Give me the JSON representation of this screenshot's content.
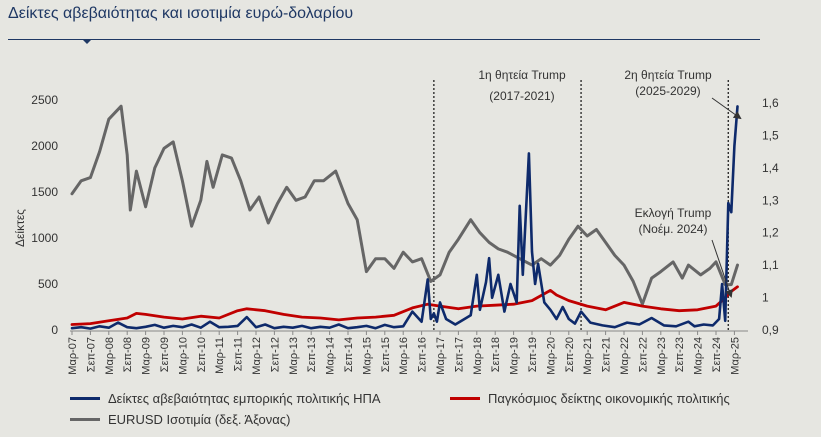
{
  "header": {
    "title": "Δείκτες αβεβαιότητας και ισοτιμία ευρώ-δολαρίου"
  },
  "chart_data": {
    "type": "line",
    "ylabel": "Δείκτες",
    "ylim": [
      0,
      2600
    ],
    "y_ticks": [
      "0",
      "500",
      "1000",
      "1500",
      "2000",
      "2500"
    ],
    "y2lim": [
      0.9,
      1.62
    ],
    "y2_ticks": [
      "0,9",
      "1",
      "1,1",
      "1,2",
      "1,3",
      "1,4",
      "1,5",
      "1,6"
    ],
    "x_ticks": [
      "Μαρ-07",
      "Σεπ-07",
      "Μαρ-08",
      "Σεπ-08",
      "Μαρ-09",
      "Σεπ-09",
      "Μαρ-10",
      "Σεπ-10",
      "Μαρ-11",
      "Σεπ-11",
      "Μαρ-12",
      "Σεπ-12",
      "Μαρ-13",
      "Σεπ-13",
      "Μαρ-14",
      "Σεπ-14",
      "Μαρ-15",
      "Σεπ-15",
      "Μαρ-16",
      "Σεπ-16",
      "Μαρ-17",
      "Σεπ-17",
      "Μαρ-18",
      "Σεπ-18",
      "Μαρ-19",
      "Σεπ-19",
      "Μαρ-20",
      "Σεπ-20",
      "Μαρ-21",
      "Σεπ-21",
      "Μαρ-22",
      "Σεπ-22",
      "Μαρ-23",
      "Σεπ-23",
      "Μαρ-24",
      "Σεπ-24",
      "Μαρ-25"
    ],
    "annotations": {
      "term1_line1": "1η θητεία Trump",
      "term1_line2": "(2017-2021)",
      "term2_line1": "2η θητεία Trump",
      "term2_line2": "(2025-2029)",
      "election_line1": "Εκλογή Trump",
      "election_line2": "(Νοέμ. 2024)"
    },
    "vlines_x": [
      "2017-01",
      "2021-01",
      "2025-01"
    ],
    "series": [
      {
        "name": "Δείκτες αβεβαιότητας εμπορικής πολιτικής ΗΠΑ",
        "axis": "left",
        "color": "#0e2a6b",
        "points": [
          [
            "2007-03",
            20
          ],
          [
            "2007-06",
            30
          ],
          [
            "2007-09",
            15
          ],
          [
            "2007-12",
            40
          ],
          [
            "2008-03",
            25
          ],
          [
            "2008-06",
            80
          ],
          [
            "2008-09",
            30
          ],
          [
            "2008-12",
            20
          ],
          [
            "2009-03",
            35
          ],
          [
            "2009-06",
            55
          ],
          [
            "2009-09",
            25
          ],
          [
            "2009-12",
            45
          ],
          [
            "2010-03",
            30
          ],
          [
            "2010-06",
            60
          ],
          [
            "2010-09",
            25
          ],
          [
            "2010-12",
            90
          ],
          [
            "2011-03",
            30
          ],
          [
            "2011-06",
            35
          ],
          [
            "2011-09",
            45
          ],
          [
            "2011-12",
            140
          ],
          [
            "2012-03",
            30
          ],
          [
            "2012-06",
            60
          ],
          [
            "2012-09",
            20
          ],
          [
            "2012-12",
            35
          ],
          [
            "2013-03",
            25
          ],
          [
            "2013-06",
            45
          ],
          [
            "2013-09",
            20
          ],
          [
            "2013-12",
            35
          ],
          [
            "2014-03",
            25
          ],
          [
            "2014-06",
            60
          ],
          [
            "2014-09",
            20
          ],
          [
            "2014-12",
            30
          ],
          [
            "2015-03",
            45
          ],
          [
            "2015-06",
            20
          ],
          [
            "2015-09",
            55
          ],
          [
            "2015-12",
            30
          ],
          [
            "2016-03",
            40
          ],
          [
            "2016-06",
            200
          ],
          [
            "2016-09",
            90
          ],
          [
            "2016-11",
            550
          ],
          [
            "2016-12",
            120
          ],
          [
            "2017-01",
            180
          ],
          [
            "2017-02",
            90
          ],
          [
            "2017-03",
            300
          ],
          [
            "2017-05",
            120
          ],
          [
            "2017-08",
            60
          ],
          [
            "2017-11",
            120
          ],
          [
            "2018-01",
            160
          ],
          [
            "2018-03",
            600
          ],
          [
            "2018-04",
            220
          ],
          [
            "2018-06",
            520
          ],
          [
            "2018-07",
            780
          ],
          [
            "2018-08",
            350
          ],
          [
            "2018-10",
            600
          ],
          [
            "2018-12",
            200
          ],
          [
            "2019-02",
            500
          ],
          [
            "2019-04",
            300
          ],
          [
            "2019-05",
            1350
          ],
          [
            "2019-06",
            600
          ],
          [
            "2019-08",
            1920
          ],
          [
            "2019-09",
            850
          ],
          [
            "2019-10",
            500
          ],
          [
            "2019-11",
            720
          ],
          [
            "2020-01",
            300
          ],
          [
            "2020-03",
            220
          ],
          [
            "2020-05",
            120
          ],
          [
            "2020-07",
            250
          ],
          [
            "2020-09",
            120
          ],
          [
            "2020-11",
            70
          ],
          [
            "2021-01",
            200
          ],
          [
            "2021-04",
            80
          ],
          [
            "2021-08",
            50
          ],
          [
            "2021-12",
            30
          ],
          [
            "2022-04",
            80
          ],
          [
            "2022-08",
            60
          ],
          [
            "2022-12",
            130
          ],
          [
            "2023-04",
            50
          ],
          [
            "2023-08",
            40
          ],
          [
            "2023-12",
            90
          ],
          [
            "2024-02",
            40
          ],
          [
            "2024-05",
            60
          ],
          [
            "2024-08",
            50
          ],
          [
            "2024-10",
            120
          ],
          [
            "2024-11",
            500
          ],
          [
            "2024-12",
            100
          ],
          [
            "2025-01",
            1380
          ],
          [
            "2025-02",
            1280
          ],
          [
            "2025-03",
            2000
          ],
          [
            "2025-04",
            2430
          ]
        ]
      },
      {
        "name": "Παγκόσμιος δείκτης οικονομικής πολιτικής",
        "axis": "left",
        "color": "#c00000",
        "points": [
          [
            "2007-03",
            60
          ],
          [
            "2007-09",
            70
          ],
          [
            "2008-03",
            100
          ],
          [
            "2008-09",
            130
          ],
          [
            "2008-12",
            180
          ],
          [
            "2009-03",
            170
          ],
          [
            "2009-09",
            140
          ],
          [
            "2010-03",
            120
          ],
          [
            "2010-09",
            150
          ],
          [
            "2011-03",
            130
          ],
          [
            "2011-09",
            210
          ],
          [
            "2011-12",
            230
          ],
          [
            "2012-06",
            210
          ],
          [
            "2012-12",
            170
          ],
          [
            "2013-06",
            140
          ],
          [
            "2013-12",
            130
          ],
          [
            "2014-06",
            110
          ],
          [
            "2014-12",
            130
          ],
          [
            "2015-06",
            140
          ],
          [
            "2015-12",
            160
          ],
          [
            "2016-06",
            240
          ],
          [
            "2016-11",
            280
          ],
          [
            "2017-03",
            260
          ],
          [
            "2017-09",
            230
          ],
          [
            "2018-03",
            260
          ],
          [
            "2018-09",
            270
          ],
          [
            "2019-03",
            280
          ],
          [
            "2019-09",
            320
          ],
          [
            "2020-03",
            430
          ],
          [
            "2020-05",
            380
          ],
          [
            "2020-09",
            320
          ],
          [
            "2021-03",
            260
          ],
          [
            "2021-09",
            220
          ],
          [
            "2022-03",
            300
          ],
          [
            "2022-09",
            260
          ],
          [
            "2023-03",
            230
          ],
          [
            "2023-09",
            210
          ],
          [
            "2024-03",
            220
          ],
          [
            "2024-09",
            260
          ],
          [
            "2024-12",
            350
          ],
          [
            "2025-02",
            420
          ],
          [
            "2025-04",
            470
          ]
        ]
      },
      {
        "name": "EURUSD Ισοτιμία (δεξ. Άξονας)",
        "axis": "right",
        "color": "#666666",
        "points": [
          [
            "2007-03",
            1.32
          ],
          [
            "2007-06",
            1.36
          ],
          [
            "2007-09",
            1.37
          ],
          [
            "2007-12",
            1.45
          ],
          [
            "2008-03",
            1.55
          ],
          [
            "2008-07",
            1.59
          ],
          [
            "2008-09",
            1.44
          ],
          [
            "2008-10",
            1.27
          ],
          [
            "2008-12",
            1.39
          ],
          [
            "2009-03",
            1.28
          ],
          [
            "2009-06",
            1.4
          ],
          [
            "2009-09",
            1.46
          ],
          [
            "2009-12",
            1.48
          ],
          [
            "2010-03",
            1.36
          ],
          [
            "2010-06",
            1.22
          ],
          [
            "2010-09",
            1.3
          ],
          [
            "2010-11",
            1.42
          ],
          [
            "2011-01",
            1.34
          ],
          [
            "2011-04",
            1.44
          ],
          [
            "2011-07",
            1.43
          ],
          [
            "2011-10",
            1.36
          ],
          [
            "2012-01",
            1.27
          ],
          [
            "2012-04",
            1.31
          ],
          [
            "2012-07",
            1.23
          ],
          [
            "2012-10",
            1.29
          ],
          [
            "2013-01",
            1.34
          ],
          [
            "2013-04",
            1.3
          ],
          [
            "2013-07",
            1.31
          ],
          [
            "2013-10",
            1.36
          ],
          [
            "2014-01",
            1.36
          ],
          [
            "2014-05",
            1.39
          ],
          [
            "2014-09",
            1.29
          ],
          [
            "2014-12",
            1.24
          ],
          [
            "2015-03",
            1.08
          ],
          [
            "2015-06",
            1.12
          ],
          [
            "2015-09",
            1.12
          ],
          [
            "2015-12",
            1.09
          ],
          [
            "2016-03",
            1.14
          ],
          [
            "2016-06",
            1.11
          ],
          [
            "2016-09",
            1.12
          ],
          [
            "2016-12",
            1.05
          ],
          [
            "2017-03",
            1.07
          ],
          [
            "2017-06",
            1.14
          ],
          [
            "2017-09",
            1.18
          ],
          [
            "2018-01",
            1.24
          ],
          [
            "2018-04",
            1.2
          ],
          [
            "2018-07",
            1.17
          ],
          [
            "2018-10",
            1.15
          ],
          [
            "2019-01",
            1.14
          ],
          [
            "2019-05",
            1.12
          ],
          [
            "2019-09",
            1.1
          ],
          [
            "2019-12",
            1.12
          ],
          [
            "2020-03",
            1.1
          ],
          [
            "2020-06",
            1.13
          ],
          [
            "2020-09",
            1.18
          ],
          [
            "2020-12",
            1.22
          ],
          [
            "2021-03",
            1.19
          ],
          [
            "2021-06",
            1.21
          ],
          [
            "2021-09",
            1.17
          ],
          [
            "2021-12",
            1.13
          ],
          [
            "2022-03",
            1.1
          ],
          [
            "2022-06",
            1.05
          ],
          [
            "2022-09",
            0.98
          ],
          [
            "2022-12",
            1.06
          ],
          [
            "2023-03",
            1.08
          ],
          [
            "2023-07",
            1.11
          ],
          [
            "2023-10",
            1.06
          ],
          [
            "2023-12",
            1.1
          ],
          [
            "2024-04",
            1.07
          ],
          [
            "2024-07",
            1.09
          ],
          [
            "2024-09",
            1.11
          ],
          [
            "2024-12",
            1.04
          ],
          [
            "2025-02",
            1.04
          ],
          [
            "2025-04",
            1.1
          ]
        ]
      }
    ],
    "legend_position": "bottom"
  }
}
